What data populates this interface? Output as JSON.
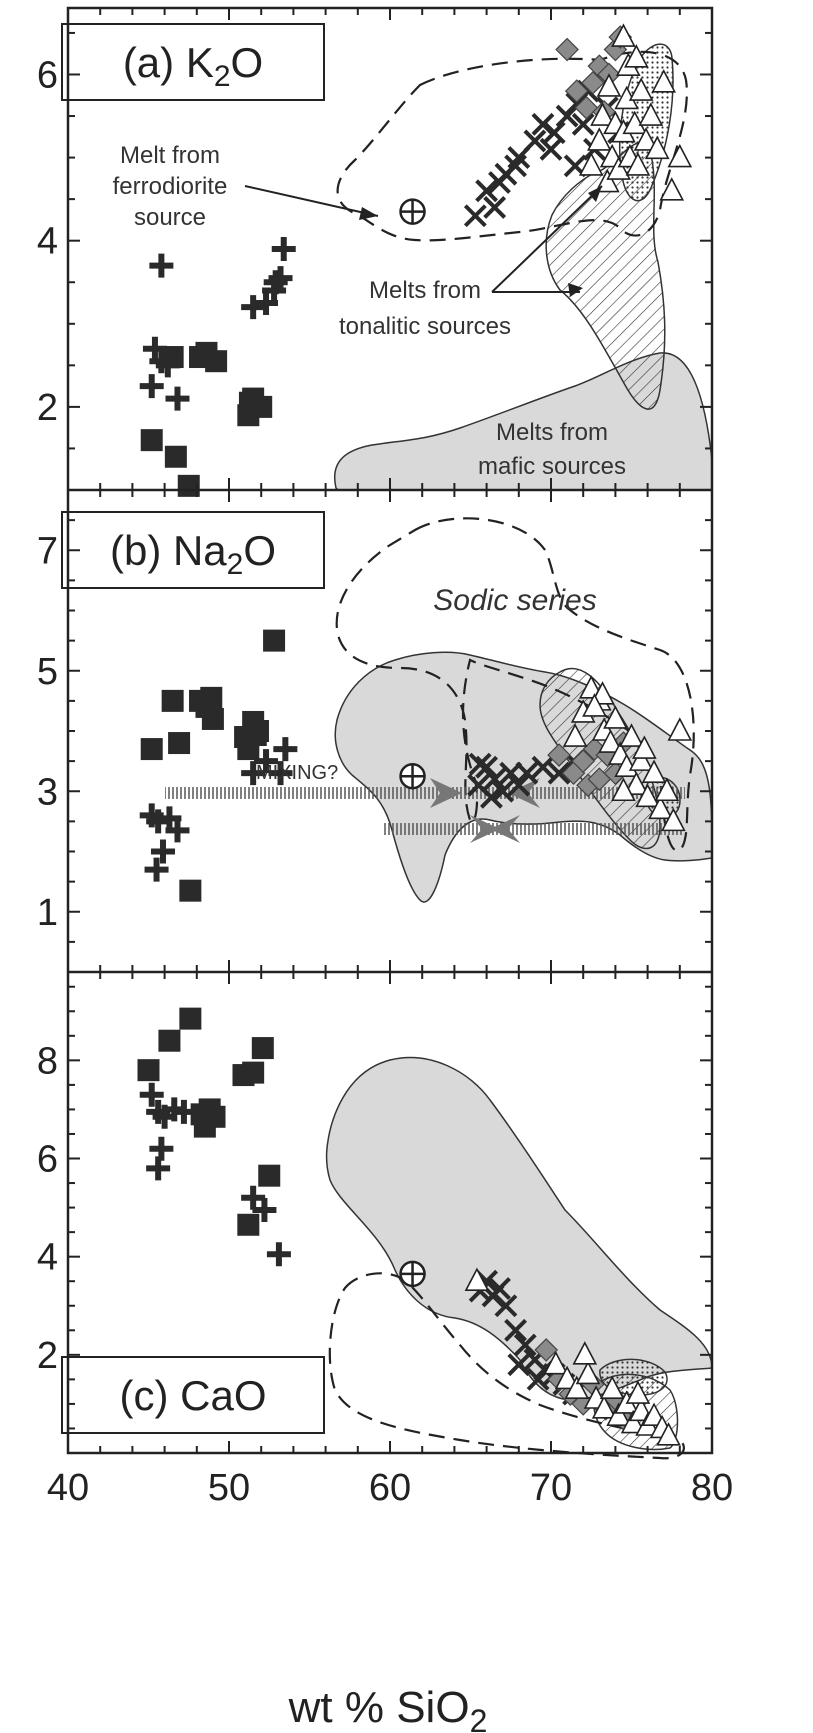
{
  "chart_data": {
    "type": "scatter",
    "xlabel": "wt % SiO2",
    "xlim": [
      40,
      80
    ],
    "xticks": [
      "40",
      "50",
      "60",
      "70",
      "80"
    ],
    "panels": [
      {
        "id": "a",
        "label_prefix": "(a) K",
        "label_sub": "2",
        "label_suffix": "O",
        "ylim": [
          1.0,
          6.8
        ],
        "yticks": [
          2,
          4,
          6
        ],
        "annotations": [
          "Melt from",
          "ferrodiorite",
          "source",
          "Melts from",
          "tonalitic sources",
          "Melts from",
          "mafic sources"
        ],
        "squares": [
          [
            45.2,
            1.6
          ],
          [
            46.5,
            2.6
          ],
          [
            46.7,
            1.4
          ],
          [
            47.5,
            1.05
          ],
          [
            48.2,
            2.6
          ],
          [
            48.6,
            2.65
          ],
          [
            49.2,
            2.55
          ],
          [
            51.2,
            1.9
          ],
          [
            51.5,
            2.1
          ],
          [
            52.0,
            2.0
          ],
          [
            51.3,
            2.05
          ]
        ],
        "crosses": [
          [
            45.8,
            3.7
          ],
          [
            45.4,
            2.7
          ],
          [
            45.8,
            2.55
          ],
          [
            45.2,
            2.25
          ],
          [
            46.2,
            2.5
          ],
          [
            46.8,
            2.1
          ],
          [
            51.5,
            3.2
          ],
          [
            52.3,
            3.25
          ],
          [
            52.8,
            3.4
          ],
          [
            53.2,
            3.55
          ],
          [
            53.4,
            3.9
          ],
          [
            52.9,
            3.5
          ]
        ],
        "xs": [
          [
            65.3,
            4.3
          ],
          [
            66.0,
            4.6
          ],
          [
            66.5,
            4.4
          ],
          [
            67.2,
            4.8
          ],
          [
            68.0,
            5.0
          ],
          [
            69.0,
            5.2
          ],
          [
            70.2,
            5.3
          ],
          [
            71.0,
            5.5
          ],
          [
            71.6,
            5.65
          ],
          [
            72.3,
            5.8
          ],
          [
            73.0,
            6.0
          ],
          [
            72.0,
            5.4
          ],
          [
            70.0,
            5.1
          ],
          [
            71.5,
            4.9
          ],
          [
            73.5,
            5.6
          ],
          [
            66.8,
            4.7
          ],
          [
            67.8,
            4.9
          ],
          [
            69.5,
            5.4
          ],
          [
            72.7,
            5.1
          ],
          [
            74.2,
            5.3
          ]
        ],
        "diamonds": [
          [
            71.0,
            6.3
          ],
          [
            71.6,
            5.8
          ],
          [
            72.2,
            5.6
          ],
          [
            72.6,
            5.9
          ],
          [
            73.0,
            6.1
          ],
          [
            73.3,
            5.55
          ],
          [
            73.6,
            6.0
          ],
          [
            74.0,
            6.3
          ],
          [
            74.3,
            6.45
          ]
        ],
        "triangles": [
          [
            72.5,
            4.9
          ],
          [
            73.0,
            5.2
          ],
          [
            73.2,
            5.5
          ],
          [
            73.5,
            4.7
          ],
          [
            73.8,
            5.0
          ],
          [
            74.0,
            5.4
          ],
          [
            74.2,
            4.85
          ],
          [
            74.5,
            5.3
          ],
          [
            74.7,
            5.7
          ],
          [
            74.9,
            5.0
          ],
          [
            75.2,
            5.4
          ],
          [
            75.4,
            4.9
          ],
          [
            75.6,
            5.8
          ],
          [
            75.9,
            5.2
          ],
          [
            76.2,
            5.5
          ],
          [
            76.6,
            5.1
          ],
          [
            77.0,
            5.9
          ],
          [
            77.5,
            4.6
          ],
          [
            78.0,
            5.0
          ],
          [
            74.5,
            6.45
          ],
          [
            74.8,
            6.1
          ],
          [
            75.3,
            6.2
          ],
          [
            73.6,
            5.85
          ]
        ],
        "ferrodiorite": [
          61.4,
          4.35
        ]
      },
      {
        "id": "b",
        "label_prefix": "(b) Na",
        "label_sub": "2",
        "label_suffix": "O",
        "ylim": [
          0,
          8
        ],
        "yticks": [
          1,
          3,
          5,
          7
        ],
        "annotations": [
          "Sodic series",
          "MIXING?"
        ],
        "squares": [
          [
            45.2,
            3.7
          ],
          [
            46.5,
            4.5
          ],
          [
            46.9,
            3.8
          ],
          [
            48.2,
            4.5
          ],
          [
            48.6,
            4.4
          ],
          [
            49.0,
            4.2
          ],
          [
            48.9,
            4.55
          ],
          [
            51.0,
            3.9
          ],
          [
            51.5,
            4.15
          ],
          [
            51.8,
            4.0
          ],
          [
            52.8,
            5.5
          ],
          [
            51.2,
            3.7
          ],
          [
            47.6,
            1.35
          ]
        ],
        "crosses": [
          [
            45.2,
            2.6
          ],
          [
            45.6,
            2.5
          ],
          [
            45.9,
            2.0
          ],
          [
            45.5,
            1.7
          ],
          [
            46.3,
            2.55
          ],
          [
            46.8,
            2.35
          ],
          [
            51.5,
            3.3
          ],
          [
            52.3,
            3.5
          ],
          [
            53.2,
            3.3
          ],
          [
            53.5,
            3.7
          ],
          [
            51.6,
            3.8
          ]
        ],
        "xs": [
          [
            65.5,
            3.1
          ],
          [
            66.0,
            3.4
          ],
          [
            66.5,
            3.2
          ],
          [
            67.0,
            3.0
          ],
          [
            67.5,
            3.3
          ],
          [
            68.0,
            3.1
          ],
          [
            66.3,
            2.9
          ],
          [
            65.6,
            3.45
          ],
          [
            68.5,
            3.3
          ],
          [
            69.5,
            3.4
          ],
          [
            70.5,
            3.3
          ],
          [
            71.4,
            3.5
          ]
        ],
        "diamonds": [
          [
            70.5,
            3.6
          ],
          [
            71.4,
            3.3
          ],
          [
            72.0,
            3.5
          ],
          [
            72.3,
            3.1
          ],
          [
            72.7,
            3.7
          ],
          [
            73.0,
            3.2
          ],
          [
            73.5,
            3.6
          ],
          [
            74.0,
            3.3
          ],
          [
            74.5,
            3.8
          ]
        ],
        "triangles": [
          [
            71.5,
            3.9
          ],
          [
            72.0,
            4.3
          ],
          [
            72.5,
            4.7
          ],
          [
            73.0,
            4.5
          ],
          [
            73.3,
            4.0
          ],
          [
            73.7,
            3.8
          ],
          [
            74.0,
            4.2
          ],
          [
            74.3,
            3.6
          ],
          [
            74.7,
            3.4
          ],
          [
            75.0,
            3.9
          ],
          [
            75.3,
            3.1
          ],
          [
            75.6,
            3.5
          ],
          [
            76.0,
            2.9
          ],
          [
            76.4,
            3.3
          ],
          [
            76.8,
            2.7
          ],
          [
            77.2,
            3.0
          ],
          [
            77.6,
            2.5
          ],
          [
            78.0,
            4.0
          ],
          [
            74.5,
            3.0
          ],
          [
            75.8,
            3.7
          ],
          [
            73.2,
            4.6
          ],
          [
            72.7,
            4.4
          ]
        ],
        "ferrodiorite": [
          61.4,
          3.25
        ]
      },
      {
        "id": "c",
        "label_prefix": "(c) CaO",
        "label_sub": "",
        "label_suffix": "",
        "ylim": [
          0,
          9.8
        ],
        "yticks": [
          2,
          4,
          6,
          8
        ],
        "squares": [
          [
            45.0,
            7.8
          ],
          [
            46.3,
            8.4
          ],
          [
            47.6,
            8.85
          ],
          [
            48.3,
            6.9
          ],
          [
            48.8,
            7.0
          ],
          [
            48.5,
            6.65
          ],
          [
            49.1,
            6.85
          ],
          [
            50.9,
            7.7
          ],
          [
            51.5,
            7.75
          ],
          [
            52.1,
            8.25
          ],
          [
            52.5,
            5.65
          ],
          [
            51.2,
            4.65
          ]
        ],
        "crosses": [
          [
            45.2,
            7.3
          ],
          [
            45.6,
            6.95
          ],
          [
            46.0,
            6.85
          ],
          [
            46.6,
            7.0
          ],
          [
            47.2,
            6.95
          ],
          [
            45.8,
            6.2
          ],
          [
            45.6,
            5.8
          ],
          [
            51.5,
            5.2
          ],
          [
            52.2,
            4.95
          ],
          [
            53.1,
            4.05
          ]
        ],
        "xs": [
          [
            65.6,
            3.3
          ],
          [
            66.0,
            3.5
          ],
          [
            66.4,
            3.2
          ],
          [
            66.8,
            3.35
          ],
          [
            67.2,
            3.0
          ],
          [
            67.8,
            2.5
          ],
          [
            68.4,
            2.2
          ],
          [
            69.0,
            1.9
          ],
          [
            69.6,
            1.7
          ],
          [
            70.2,
            1.6
          ],
          [
            70.8,
            1.4
          ],
          [
            71.4,
            1.2
          ],
          [
            68.0,
            1.8
          ],
          [
            69.2,
            1.5
          ]
        ],
        "diamonds": [
          [
            69.7,
            2.1
          ],
          [
            70.5,
            1.5
          ],
          [
            71.2,
            1.2
          ],
          [
            72.0,
            1.0
          ],
          [
            72.6,
            1.4
          ],
          [
            73.4,
            0.9
          ],
          [
            74.0,
            1.1
          ],
          [
            74.5,
            0.7
          ]
        ],
        "triangles": [
          [
            65.4,
            3.5
          ],
          [
            70.3,
            1.8
          ],
          [
            71.0,
            1.5
          ],
          [
            71.6,
            1.3
          ],
          [
            72.3,
            1.6
          ],
          [
            72.8,
            1.1
          ],
          [
            73.3,
            0.9
          ],
          [
            73.8,
            1.3
          ],
          [
            74.2,
            0.75
          ],
          [
            74.7,
            1.0
          ],
          [
            75.1,
            0.6
          ],
          [
            75.6,
            0.85
          ],
          [
            76.0,
            0.55
          ],
          [
            76.4,
            0.75
          ],
          [
            76.9,
            0.5
          ],
          [
            77.3,
            0.35
          ],
          [
            75.4,
            1.2
          ],
          [
            72.1,
            2.0
          ]
        ],
        "ferrodiorite": [
          61.4,
          3.65
        ]
      }
    ]
  },
  "colors": {
    "field_grey": "#d9d9d9",
    "diamond_fill": "#8a8a8a",
    "marker": "#2a2a2a"
  }
}
